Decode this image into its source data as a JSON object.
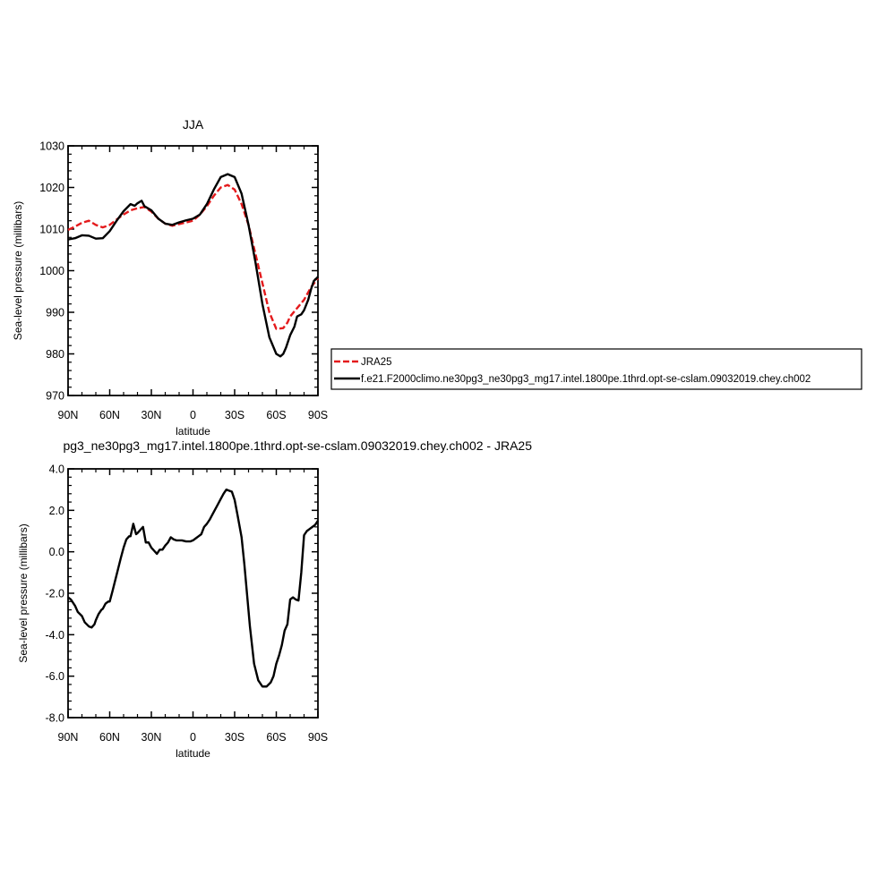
{
  "chart_data": [
    {
      "type": "line",
      "title": "JJA",
      "xlabel": "latitude",
      "ylabel": "Sea-level pressure (millibars)",
      "xlim": [
        90,
        -90
      ],
      "ylim": [
        970,
        1030
      ],
      "xticks": [
        {
          "value": 90,
          "label": "90N"
        },
        {
          "value": 60,
          "label": "60N"
        },
        {
          "value": 30,
          "label": "30N"
        },
        {
          "value": 0,
          "label": "0"
        },
        {
          "value": -30,
          "label": "30S"
        },
        {
          "value": -60,
          "label": "60S"
        },
        {
          "value": -90,
          "label": "90S"
        }
      ],
      "yticks": [
        {
          "value": 1030,
          "label": "1030"
        },
        {
          "value": 1020,
          "label": "1020"
        },
        {
          "value": 1010,
          "label": "1010"
        },
        {
          "value": 1000,
          "label": "1000"
        },
        {
          "value": 990,
          "label": "990"
        },
        {
          "value": 980,
          "label": "980"
        },
        {
          "value": 970,
          "label": "970"
        }
      ],
      "legend": "right",
      "series": [
        {
          "name": "JRA25",
          "color": "#e41a1c",
          "dash": true,
          "x": [
            90,
            85,
            80,
            75,
            70,
            65,
            60,
            55,
            50,
            45,
            40,
            35,
            30,
            25,
            20,
            15,
            10,
            5,
            0,
            -5,
            -10,
            -15,
            -20,
            -25,
            -30,
            -35,
            -40,
            -45,
            -50,
            -55,
            -60,
            -65,
            -68,
            -70,
            -75,
            -80,
            -85,
            -90
          ],
          "y": [
            1009.8,
            1010.6,
            1011.5,
            1012,
            1011,
            1010.4,
            1011,
            1012.3,
            1013.5,
            1014.5,
            1015,
            1015.3,
            1014.2,
            1012.5,
            1011.3,
            1010.8,
            1011.2,
            1011.6,
            1012,
            1013.5,
            1015.5,
            1018,
            1020,
            1020.6,
            1019.5,
            1016,
            1011,
            1004,
            997,
            990,
            986,
            986.2,
            987.5,
            989,
            991,
            993,
            996,
            998.2
          ]
        },
        {
          "name": "f.e21.F2000climo.ne30pg3_ne30pg3_mg17.intel.1800pe.1thrd.opt-se-cslam.09032019.chey.ch002",
          "color": "#000000",
          "dash": false,
          "x": [
            90,
            85,
            80,
            75,
            70,
            65,
            60,
            55,
            50,
            45,
            42,
            40,
            37,
            35,
            30,
            25,
            20,
            15,
            10,
            5,
            0,
            -5,
            -10,
            -15,
            -20,
            -25,
            -30,
            -35,
            -40,
            -45,
            -50,
            -55,
            -60,
            -63,
            -65,
            -67,
            -70,
            -73,
            -75,
            -78,
            -80,
            -83,
            -85,
            -87,
            -90
          ],
          "y": [
            1007.5,
            1007.8,
            1008.5,
            1008.4,
            1007.7,
            1007.8,
            1009.5,
            1012,
            1014.3,
            1016,
            1015.6,
            1016.2,
            1016.8,
            1015.5,
            1014.5,
            1012.5,
            1011.3,
            1011,
            1011.6,
            1012.1,
            1012.5,
            1013.5,
            1016,
            1019.5,
            1022.5,
            1023.2,
            1022.5,
            1018.5,
            1011,
            1002,
            992,
            984,
            980,
            979.4,
            980,
            981.5,
            984.5,
            986.5,
            989,
            989.5,
            990.5,
            993,
            995.5,
            997.5,
            998.5
          ]
        }
      ]
    },
    {
      "type": "line",
      "title": "pg3_ne30pg3_mg17.intel.1800pe.1thrd.opt-se-cslam.09032019.chey.ch002 - JRA25",
      "xlabel": "latitude",
      "ylabel": "Sea-level pressure (millibars)",
      "xlim": [
        90,
        -90
      ],
      "ylim": [
        -8.0,
        4.0
      ],
      "xticks": [
        {
          "value": 90,
          "label": "90N"
        },
        {
          "value": 60,
          "label": "60N"
        },
        {
          "value": 30,
          "label": "30N"
        },
        {
          "value": 0,
          "label": "0"
        },
        {
          "value": -30,
          "label": "30S"
        },
        {
          "value": -60,
          "label": "60S"
        },
        {
          "value": -90,
          "label": "90S"
        }
      ],
      "yticks": [
        {
          "value": 4.0,
          "label": "4.0"
        },
        {
          "value": 2.0,
          "label": "2.0"
        },
        {
          "value": 0.0,
          "label": "0.0"
        },
        {
          "value": -2.0,
          "label": "-2.0"
        },
        {
          "value": -4.0,
          "label": "-4.0"
        },
        {
          "value": -6.0,
          "label": "-6.0"
        },
        {
          "value": -8.0,
          "label": "-8.0"
        }
      ],
      "series": [
        {
          "color": "#000000",
          "dash": false,
          "x": [
            90,
            88,
            85,
            83,
            80,
            78,
            75,
            73,
            71,
            70,
            68,
            66,
            65,
            63,
            61,
            60,
            58,
            55,
            52,
            50,
            48,
            46,
            45,
            43,
            41,
            40,
            38,
            36,
            34,
            32,
            30,
            28,
            26,
            24,
            22,
            20,
            18,
            16,
            14,
            12,
            10,
            8,
            5,
            2,
            0,
            -2,
            -4,
            -6,
            -8,
            -10,
            -12,
            -14,
            -16,
            -18,
            -20,
            -22,
            -24,
            -26,
            -28,
            -30,
            -32,
            -35,
            -37,
            -39,
            -41,
            -44,
            -47,
            -50,
            -53,
            -56,
            -58,
            -60,
            -62,
            -64,
            -66,
            -68,
            -70,
            -72,
            -74,
            -76,
            -78,
            -80,
            -82,
            -84,
            -86,
            -88,
            -90
          ],
          "y": [
            -2.2,
            -2.3,
            -2.6,
            -2.9,
            -3.1,
            -3.4,
            -3.6,
            -3.65,
            -3.5,
            -3.3,
            -3.0,
            -2.8,
            -2.75,
            -2.5,
            -2.4,
            -2.4,
            -1.9,
            -1.1,
            -0.3,
            0.2,
            0.6,
            0.75,
            0.75,
            1.35,
            0.85,
            0.9,
            1.05,
            1.2,
            0.45,
            0.45,
            0.2,
            0.05,
            -0.1,
            0.1,
            0.1,
            0.3,
            0.45,
            0.7,
            0.6,
            0.55,
            0.55,
            0.55,
            0.5,
            0.5,
            0.55,
            0.65,
            0.75,
            0.85,
            1.2,
            1.35,
            1.55,
            1.8,
            2.05,
            2.3,
            2.55,
            2.8,
            3.0,
            2.95,
            2.9,
            2.5,
            1.8,
            0.7,
            -0.6,
            -2.1,
            -3.6,
            -5.4,
            -6.2,
            -6.5,
            -6.5,
            -6.3,
            -6.0,
            -5.4,
            -5.0,
            -4.5,
            -3.8,
            -3.5,
            -2.3,
            -2.2,
            -2.3,
            -2.35,
            -1.0,
            0.8,
            1.0,
            1.1,
            1.2,
            1.3,
            1.5
          ]
        }
      ]
    }
  ]
}
